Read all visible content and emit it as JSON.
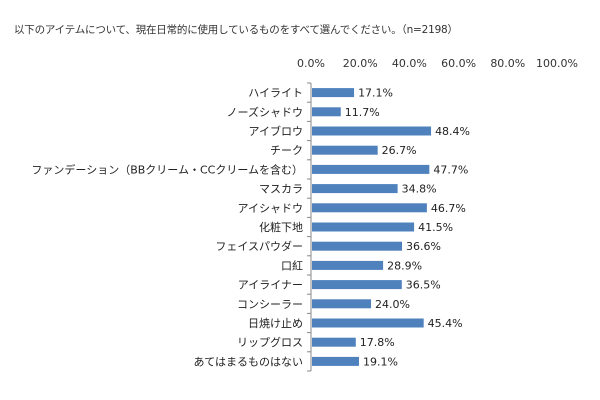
{
  "chart_data": {
    "type": "bar",
    "orientation": "horizontal",
    "title": "以下のアイテムについて、現在日常的に使用しているものをすべて選んでください。（n=2198）",
    "categories": [
      "ハイライト",
      "ノーズシャドウ",
      "アイブロウ",
      "チーク",
      "ファンデーション（BBクリーム・CCクリームを含む）",
      "マスカラ",
      "アイシャドウ",
      "化粧下地",
      "フェイスパウダー",
      "口紅",
      "アイライナー",
      "コンシーラー",
      "日焼け止め",
      "リップグロス",
      "あてはまるものはない"
    ],
    "values": [
      17.1,
      11.7,
      48.4,
      26.7,
      47.7,
      34.8,
      46.7,
      41.5,
      36.6,
      28.9,
      36.5,
      24.0,
      45.4,
      17.8,
      19.1
    ],
    "value_labels": [
      "17.1%",
      "11.7%",
      "48.4%",
      "26.7%",
      "47.7%",
      "34.8%",
      "46.7%",
      "41.5%",
      "36.6%",
      "28.9%",
      "36.5%",
      "24.0%",
      "45.4%",
      "17.8%",
      "19.1%"
    ],
    "xlim": [
      0,
      100
    ],
    "x_ticks": [
      0,
      20,
      40,
      60,
      80,
      100
    ],
    "x_tick_labels": [
      "0.0%",
      "20.0%",
      "40.0%",
      "60.0%",
      "80.0%",
      "100.0%"
    ],
    "axis_position": "top",
    "grid": false,
    "bar_color": "#4f81bd",
    "xlabel": "",
    "ylabel": ""
  }
}
